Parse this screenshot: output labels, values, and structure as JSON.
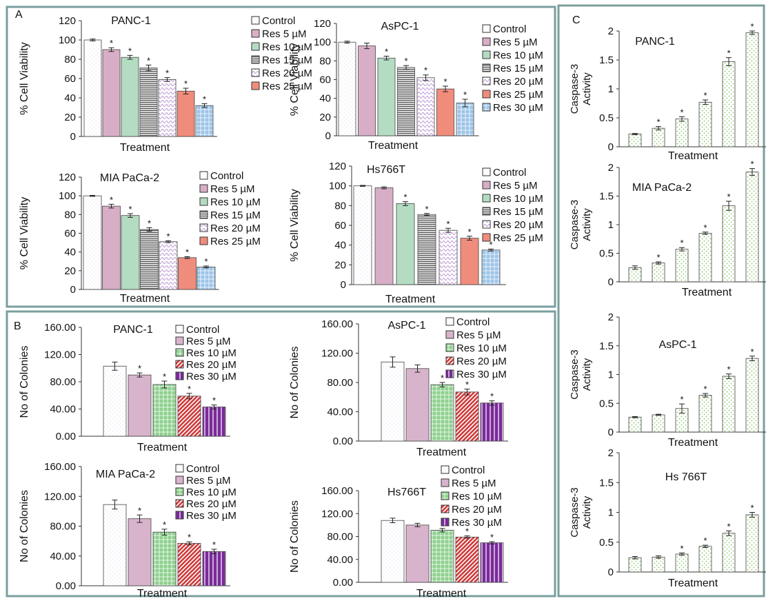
{
  "panels": [
    "A",
    "B",
    "C"
  ],
  "chart_data": [
    {
      "type": "bar",
      "title": "PANC-1",
      "xlabel": "Treatment",
      "ylabel": "% Cell Viability",
      "categories": [
        "Control",
        "Res 5 µM",
        "Res 10 µM",
        "Res 15 µM",
        "Res 20 µM",
        "Res 25 µM",
        null
      ],
      "values": [
        100,
        90,
        82,
        71,
        59,
        47,
        32
      ],
      "errors": [
        1,
        2,
        2,
        3,
        2,
        3,
        2
      ],
      "significance": [
        null,
        "*",
        "*",
        "*",
        "*",
        "*",
        "*"
      ],
      "colors": [
        "#efe8f4",
        "#d8aec6",
        "#b4dcc2",
        "#555555",
        "#c4a4d8",
        "#f08c7c",
        "#9cc4e8"
      ],
      "patterns": [
        "dots",
        "solid",
        "solid",
        "hlines",
        "waves",
        "solid",
        "grid"
      ],
      "ylim": [
        0,
        120
      ],
      "yticks": [
        0,
        20,
        40,
        60,
        80,
        100,
        120
      ],
      "legend": "right"
    },
    {
      "type": "bar",
      "title": "AsPC-1",
      "xlabel": "Treatment",
      "ylabel": "% Cell Viability",
      "categories": [
        "Control",
        "Res 5 µM",
        "Res 10 µM",
        "Res 15 µM",
        "Res 20 µM",
        "Res 25 µM",
        "Res 30 µM"
      ],
      "values": [
        100,
        96,
        83,
        73,
        62,
        50,
        35
      ],
      "errors": [
        1,
        3,
        2,
        2,
        3,
        3,
        4
      ],
      "significance": [
        null,
        null,
        "*",
        "*",
        "*",
        "*",
        "*"
      ],
      "colors": [
        "#efe8f4",
        "#d8aec6",
        "#b4dcc2",
        "#555555",
        "#c4a4d8",
        "#f08c7c",
        "#9cc4e8"
      ],
      "patterns": [
        "dots",
        "solid",
        "solid",
        "hlines",
        "waves",
        "solid",
        "grid"
      ],
      "ylim": [
        0,
        120
      ],
      "yticks": [
        0,
        20,
        40,
        60,
        80,
        100,
        120
      ],
      "legend": "right"
    },
    {
      "type": "bar",
      "title": "MIA PaCa-2",
      "xlabel": "Treatment",
      "ylabel": "% Cell Viability",
      "categories": [
        "Control",
        "Res 5 µM",
        "Res 10 µM",
        "Res 15 µM",
        "Res 20 µM",
        "Res 25 µM",
        null
      ],
      "values": [
        100,
        89,
        79,
        64,
        51,
        34,
        24
      ],
      "errors": [
        0.5,
        2,
        2,
        2,
        1,
        1,
        1
      ],
      "significance": [
        null,
        "*",
        "*",
        "*",
        "*",
        "*",
        "*"
      ],
      "colors": [
        "#efe8f4",
        "#d8aec6",
        "#b4dcc2",
        "#555555",
        "#c4a4d8",
        "#f08c7c",
        "#9cc4e8"
      ],
      "patterns": [
        "dots",
        "solid",
        "solid",
        "hlines",
        "waves",
        "solid",
        "grid"
      ],
      "ylim": [
        0,
        120
      ],
      "yticks": [
        0,
        20,
        40,
        60,
        80,
        100,
        120
      ],
      "legend": "right"
    },
    {
      "type": "bar",
      "title": "Hs766T",
      "xlabel": "Treatment",
      "ylabel": "% Cell Viability",
      "categories": [
        "Control",
        "Res 5 µM",
        "Res 10 µM",
        "Res 15 µM",
        "Res 20 µM",
        "Res 25 µM",
        null
      ],
      "values": [
        100,
        98,
        82,
        71,
        55,
        47,
        35
      ],
      "errors": [
        0.5,
        1,
        2,
        1,
        2,
        2,
        1
      ],
      "significance": [
        null,
        null,
        "*",
        "*",
        "*",
        "*",
        "*"
      ],
      "colors": [
        "#efe8f4",
        "#d8aec6",
        "#b4dcc2",
        "#555555",
        "#c4a4d8",
        "#f08c7c",
        "#9cc4e8"
      ],
      "patterns": [
        "dots",
        "solid",
        "solid",
        "hlines",
        "waves",
        "solid",
        "grid"
      ],
      "ylim": [
        0,
        120
      ],
      "yticks": [
        0,
        20,
        40,
        60,
        80,
        100,
        120
      ],
      "legend": "right"
    },
    {
      "type": "bar",
      "title": "PANC-1",
      "xlabel": "Treatment",
      "ylabel": "No of Colonies",
      "categories": [
        "Control",
        "Res 5 µM",
        "Res 10 µM",
        "Res 20 µM",
        "Res 30 µM"
      ],
      "values": [
        103,
        90,
        76,
        59,
        43
      ],
      "errors": [
        6,
        3,
        5,
        4,
        3
      ],
      "significance": [
        null,
        "*",
        "*",
        "*",
        "*"
      ],
      "colors": [
        "#efe8f4",
        "#d8b4cc",
        "#8ed08e",
        "#d03a3a",
        "#7a2a9a"
      ],
      "patterns": [
        "dots",
        "solid",
        "grid",
        "diag",
        "vlines"
      ],
      "ylim": [
        0,
        160
      ],
      "yticks": [
        {
          "value": 0,
          "label": "0.00"
        },
        {
          "value": 40,
          "label": "40.00"
        },
        {
          "value": 80,
          "label": "80.00"
        },
        {
          "value": 120,
          "label": "120.00"
        },
        {
          "value": 160,
          "label": "160.00"
        }
      ],
      "legend": "right"
    },
    {
      "type": "bar",
      "title": "AsPC-1",
      "xlabel": "Treatment",
      "ylabel": "No of Colonies",
      "categories": [
        "Control",
        "Res 5 µM",
        "Res 10 µM",
        "Res 20 µM",
        "Res 30 µM"
      ],
      "values": [
        108,
        99,
        77,
        67,
        52
      ],
      "errors": [
        7,
        5,
        3,
        4,
        3
      ],
      "significance": [
        null,
        null,
        "*",
        "*",
        "*"
      ],
      "colors": [
        "#efe8f4",
        "#d8b4cc",
        "#8ed08e",
        "#d03a3a",
        "#7a2a9a"
      ],
      "patterns": [
        "dots",
        "solid",
        "grid",
        "diag",
        "vlines"
      ],
      "ylim": [
        0,
        160
      ],
      "yticks": [
        {
          "value": 0,
          "label": "0.00"
        },
        {
          "value": 40,
          "label": "40.00"
        },
        {
          "value": 80,
          "label": "80.00"
        },
        {
          "value": 120,
          "label": "120.00"
        },
        {
          "value": 160,
          "label": "160.00"
        }
      ],
      "legend": "right"
    },
    {
      "type": "bar",
      "title": "MIA PaCa-2",
      "xlabel": "Treatment",
      "ylabel": "No of Colonies",
      "categories": [
        "Control",
        "Res 5 µM",
        "Res 10 µM",
        "Res 20 µM",
        "Res 30 µM"
      ],
      "values": [
        109,
        90,
        72,
        57,
        46
      ],
      "errors": [
        6,
        5,
        4,
        2,
        3
      ],
      "significance": [
        null,
        "*",
        "*",
        "*",
        "*"
      ],
      "colors": [
        "#efe8f4",
        "#d8b4cc",
        "#8ed08e",
        "#d03a3a",
        "#7a2a9a"
      ],
      "patterns": [
        "dots",
        "solid",
        "grid",
        "diag",
        "vlines"
      ],
      "ylim": [
        0,
        160
      ],
      "yticks": [
        {
          "value": 0,
          "label": "0.00"
        },
        {
          "value": 40,
          "label": "40.00"
        },
        {
          "value": 80,
          "label": "80.00"
        },
        {
          "value": 120,
          "label": "120.00"
        },
        {
          "value": 160,
          "label": "160.00"
        }
      ],
      "legend": "right"
    },
    {
      "type": "bar",
      "title": "Hs766T",
      "xlabel": "Treatment",
      "ylabel": "No of Colonies",
      "categories": [
        "Control",
        "Res 5 µM",
        "Res 10 µM",
        "Res 20 µM",
        "Res 30 µM"
      ],
      "values": [
        108,
        100,
        91,
        79,
        69
      ],
      "errors": [
        4,
        3,
        3,
        2,
        2
      ],
      "significance": [
        null,
        null,
        "*",
        "*",
        "*"
      ],
      "colors": [
        "#efe8f4",
        "#d8b4cc",
        "#8ed08e",
        "#d03a3a",
        "#7a2a9a"
      ],
      "patterns": [
        "dots",
        "solid",
        "grid",
        "diag",
        "vlines"
      ],
      "ylim": [
        0,
        160
      ],
      "yticks": [
        {
          "value": 0,
          "label": "0.00"
        },
        {
          "value": 40,
          "label": "40.00"
        },
        {
          "value": 80,
          "label": "80.00"
        },
        {
          "value": 120,
          "label": "120.00"
        },
        {
          "value": 160,
          "label": "160.00"
        }
      ],
      "legend": "right"
    },
    {
      "type": "bar",
      "title": "PANC-1",
      "xlabel": "Treatment",
      "ylabel": "Caspase-3 Activity",
      "values": [
        0.22,
        0.32,
        0.48,
        0.77,
        1.47,
        1.97
      ],
      "errors": [
        0.01,
        0.03,
        0.04,
        0.04,
        0.07,
        0.03
      ],
      "significance": [
        null,
        "*",
        "*",
        "*",
        "*",
        "*"
      ],
      "color": "#8cc46c",
      "pattern": "dots",
      "ylim": [
        0,
        2
      ],
      "yticks": [
        0,
        0.5,
        1,
        1.5,
        2
      ]
    },
    {
      "type": "bar",
      "title": "MIA PaCa-2",
      "xlabel": "Treatment",
      "ylabel": "Caspase-3 Activity",
      "values": [
        0.25,
        0.33,
        0.57,
        0.85,
        1.33,
        1.92
      ],
      "errors": [
        0.03,
        0.02,
        0.03,
        0.02,
        0.08,
        0.06
      ],
      "significance": [
        null,
        "*",
        "*",
        "*",
        "*",
        "*"
      ],
      "color": "#8cc46c",
      "pattern": "dots",
      "ylim": [
        0,
        2
      ],
      "yticks": [
        0,
        0.5,
        1,
        1.5,
        2
      ]
    },
    {
      "type": "bar",
      "title": "AsPC-1",
      "xlabel": "Treatment",
      "ylabel": "Caspase-3 Activity",
      "values": [
        0.26,
        0.3,
        0.41,
        0.64,
        0.97,
        1.28
      ],
      "errors": [
        0.01,
        0.01,
        0.08,
        0.03,
        0.04,
        0.04
      ],
      "significance": [
        null,
        null,
        "*",
        "*",
        "*",
        "*"
      ],
      "color": "#8cc46c",
      "pattern": "dots",
      "ylim": [
        0,
        2
      ],
      "yticks": [
        0,
        0.5,
        1,
        1.5,
        2
      ]
    },
    {
      "type": "bar",
      "title": "Hs 766T",
      "xlabel": "Treatment",
      "ylabel": "Caspase-3 Activity",
      "values": [
        0.24,
        0.25,
        0.3,
        0.43,
        0.65,
        0.96
      ],
      "errors": [
        0.02,
        0.02,
        0.02,
        0.02,
        0.04,
        0.04
      ],
      "significance": [
        null,
        null,
        "*",
        "*",
        "*",
        "*"
      ],
      "color": "#8cc46c",
      "pattern": "dots",
      "ylim": [
        0,
        2
      ],
      "yticks": [
        0,
        0.5,
        1,
        1.5,
        2
      ]
    }
  ]
}
